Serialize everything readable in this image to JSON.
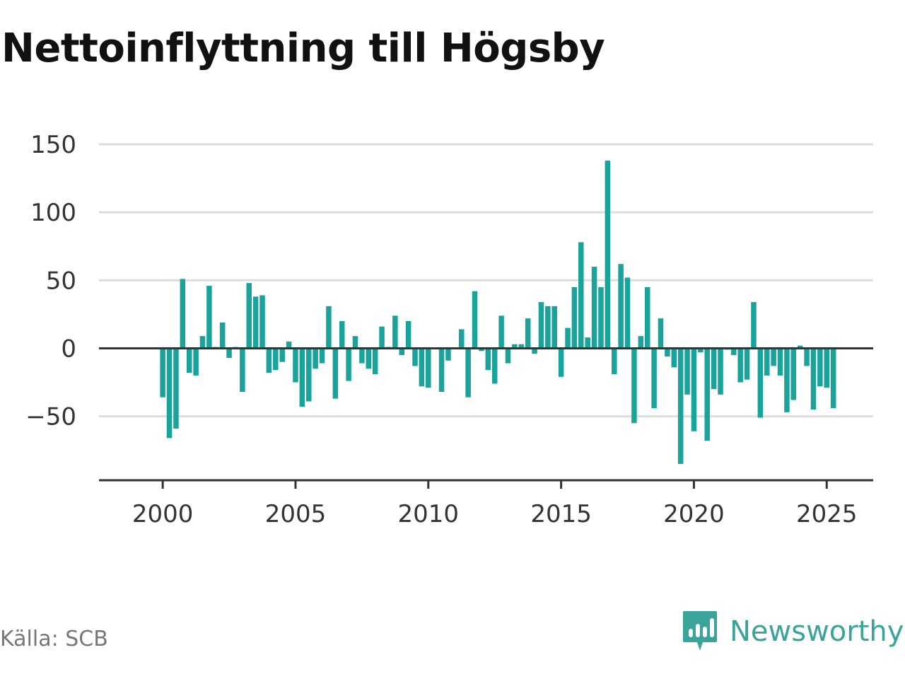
{
  "chart_data": {
    "type": "bar",
    "title": "Nettoinflyttning till Högsby",
    "xlabel": "",
    "ylabel": "",
    "ylim": [
      -97,
      150
    ],
    "yticks": [
      150,
      100,
      50,
      0,
      -50
    ],
    "ytick_labels": [
      "150",
      "100",
      "50",
      "0",
      "−50"
    ],
    "xlim": [
      1997.6,
      2026.75
    ],
    "xticks": [
      2000,
      2005,
      2010,
      2015,
      2020,
      2025
    ],
    "xtick_labels": [
      "2000",
      "2005",
      "2010",
      "2015",
      "2020",
      "2025"
    ],
    "grid": true,
    "bar_color": "#1aa39a",
    "x": [
      2000.0,
      2000.25,
      2000.5,
      2000.75,
      2001.0,
      2001.25,
      2001.5,
      2001.75,
      2002.0,
      2002.25,
      2002.5,
      2002.75,
      2003.0,
      2003.25,
      2003.5,
      2003.75,
      2004.0,
      2004.25,
      2004.5,
      2004.75,
      2005.0,
      2005.25,
      2005.5,
      2005.75,
      2006.0,
      2006.25,
      2006.5,
      2006.75,
      2007.0,
      2007.25,
      2007.5,
      2007.75,
      2008.0,
      2008.25,
      2008.5,
      2008.75,
      2009.0,
      2009.25,
      2009.5,
      2009.75,
      2010.0,
      2010.25,
      2010.5,
      2010.75,
      2011.0,
      2011.25,
      2011.5,
      2011.75,
      2012.0,
      2012.25,
      2012.5,
      2012.75,
      2013.0,
      2013.25,
      2013.5,
      2013.75,
      2014.0,
      2014.25,
      2014.5,
      2014.75,
      2015.0,
      2015.25,
      2015.5,
      2015.75,
      2016.0,
      2016.25,
      2016.5,
      2016.75,
      2017.0,
      2017.25,
      2017.5,
      2017.75,
      2018.0,
      2018.25,
      2018.5,
      2018.75,
      2019.0,
      2019.25,
      2019.5,
      2019.75,
      2020.0,
      2020.25,
      2020.5,
      2020.75,
      2021.0,
      2021.25,
      2021.5,
      2021.75,
      2022.0,
      2022.25,
      2022.5,
      2022.75,
      2023.0,
      2023.25,
      2023.5,
      2023.75,
      2024.0,
      2024.25,
      2024.5,
      2024.75,
      2025.0,
      2025.25
    ],
    "values": [
      -36,
      -66,
      -59,
      51,
      -18,
      -20,
      9,
      46,
      1,
      19,
      -7,
      1,
      -32,
      48,
      38,
      39,
      -18,
      -16,
      -10,
      5,
      -25,
      -43,
      -39,
      -15,
      -11,
      31,
      -37,
      20,
      -24,
      9,
      -11,
      -15,
      -19,
      16,
      1,
      24,
      -5,
      20,
      -13,
      -28,
      -29,
      0,
      -32,
      -9,
      0,
      14,
      -36,
      42,
      -2,
      -16,
      -26,
      24,
      -11,
      3,
      3,
      22,
      -4,
      34,
      31,
      31,
      -21,
      15,
      45,
      78,
      8,
      60,
      45,
      138,
      -19,
      62,
      52,
      -55,
      9,
      45,
      -44,
      22,
      -6,
      -14,
      -85,
      -34,
      -61,
      -3,
      -68,
      -30,
      -34,
      -1,
      -5,
      -25,
      -23,
      34,
      -51,
      -20,
      -13,
      -20,
      -47,
      -38,
      2,
      -13,
      -45,
      -28,
      -29,
      -44
    ]
  },
  "source": "Källa: SCB",
  "brand": {
    "name": "Newsworthy",
    "color": "#3aa39a",
    "icon": "speech-bubble-bar-chart-icon"
  }
}
